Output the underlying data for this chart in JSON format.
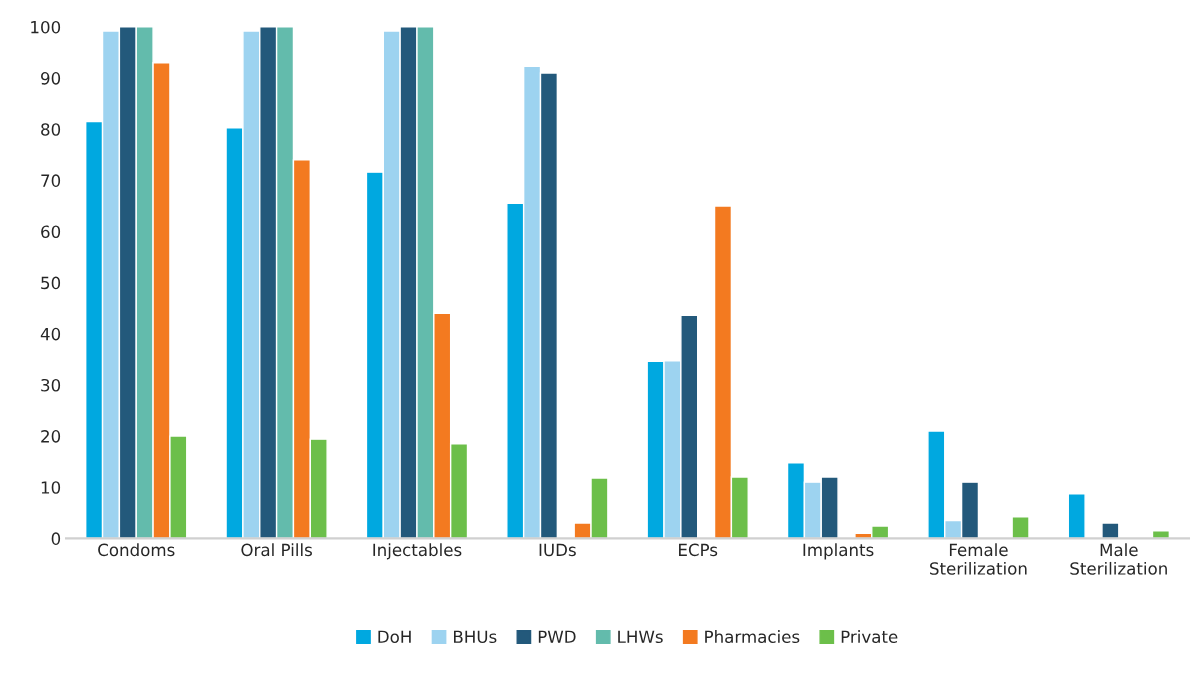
{
  "chart_data": {
    "type": "bar",
    "categories": [
      "Condoms",
      "Oral Pills",
      "Injectables",
      "IUDs",
      "ECPs",
      "Implants",
      "Female\nSterilization",
      "Male\nSterilization"
    ],
    "series": [
      {
        "name": "DoH",
        "color": "#00a8e0",
        "values": [
          81.5,
          80.3,
          71.6,
          65.5,
          34.6,
          14.8,
          21,
          8.7
        ]
      },
      {
        "name": "BHUs",
        "color": "#9dd3f0",
        "values": [
          99.2,
          99.2,
          99.2,
          92.3,
          34.7,
          11,
          3.5,
          null
        ]
      },
      {
        "name": "PWD",
        "color": "#23597b",
        "values": [
          100,
          100,
          100,
          91,
          43.6,
          12,
          11,
          3
        ]
      },
      {
        "name": "LHWs",
        "color": "#63bbac",
        "values": [
          100,
          100,
          100,
          null,
          null,
          null,
          null,
          null
        ]
      },
      {
        "name": "Pharmacies",
        "color": "#f37a20",
        "values": [
          93,
          74,
          44,
          3,
          65,
          1,
          null,
          null
        ]
      },
      {
        "name": "Private",
        "color": "#6cbf4a",
        "values": [
          20,
          19.4,
          18.5,
          11.8,
          12,
          2.4,
          4.2,
          1.5
        ]
      }
    ],
    "ylim": [
      0,
      100
    ],
    "yticks": [
      0,
      10,
      20,
      30,
      40,
      50,
      60,
      70,
      80,
      90,
      100
    ],
    "grid": false,
    "legend": "bottom"
  }
}
